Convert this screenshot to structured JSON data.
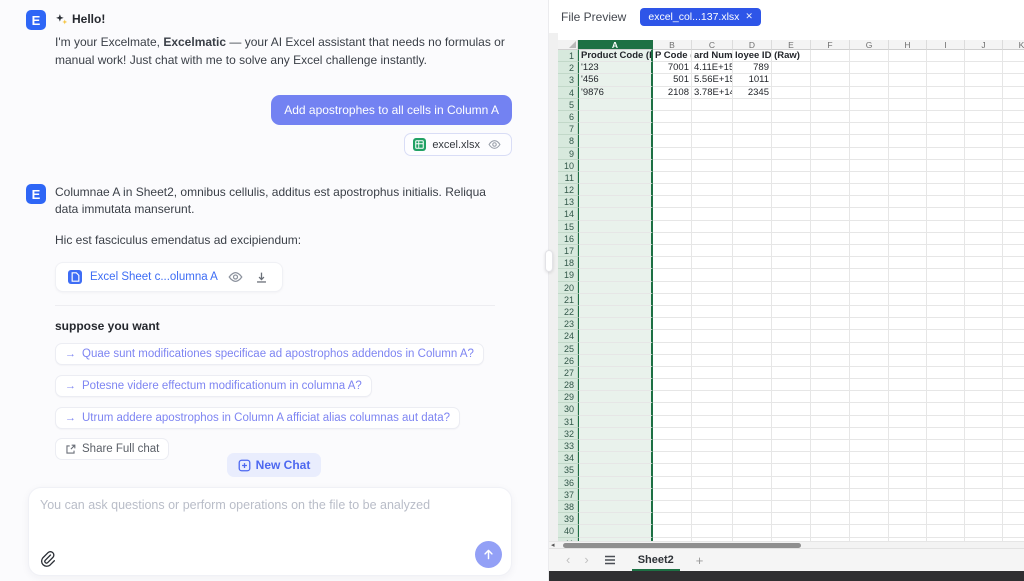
{
  "chat": {
    "logo_letter": "E",
    "greeting": {
      "title": "Hello!",
      "body_prefix": "I'm your Excelmate, ",
      "body_bold": "Excelmatic",
      "body_suffix": " — your AI Excel assistant that needs no formulas or manual work! Just chat with me to solve any Excel challenge instantly."
    },
    "user_message": "Add apostrophes to all cells in Column A",
    "user_file_chip": "excel.xlsx",
    "reply": {
      "line1": "Columnae A in Sheet2, omnibus cellulis, additus est apostrophus initialis. Reliqua data immutata manserunt.",
      "line2": "Hic est fasciculus emendatus ad excipiendum:",
      "file_link": "Excel Sheet c...olumna A"
    },
    "suggestions": {
      "title": "suppose you want",
      "arrow_glyph": "→",
      "items": [
        "Quae sunt modificationes specificae ad apostrophos addendos in Column A?",
        "Potesne videre effectum modificationum in columna A?",
        "Utrum addere apostrophos in Column A afficiat alias columnas aut data?"
      ],
      "share_label": "Share Full chat"
    },
    "new_chat_label": "New Chat",
    "input_placeholder": "You can ask questions or perform operations on the file to be analyzed"
  },
  "preview": {
    "header_label": "File Preview",
    "tab_label": "excel_col...137.xlsx",
    "tab_close_glyph": "✕",
    "columns": [
      "A",
      "B",
      "C",
      "D",
      "E",
      "F",
      "G",
      "H",
      "I",
      "J",
      "K"
    ],
    "row_count": 41,
    "selected_column": "A",
    "cells": {
      "1": {
        "A": "Product Code (Raw)",
        "B": "P Code (Ra",
        "C": "ard Numbe",
        "D": "loyee ID (Raw)"
      },
      "2": {
        "A": "'123",
        "B": "7001",
        "C": "4.11E+15",
        "D": "789"
      },
      "3": {
        "A": "'456",
        "B": "501",
        "C": "5.56E+15",
        "D": "1011"
      },
      "4": {
        "A": "'9876",
        "B": "2108",
        "C": "3.78E+14",
        "D": "2345"
      }
    },
    "scroll": {
      "left_arrow_glyph": "◂"
    },
    "sheet_bar": {
      "prev_glyph": "‹",
      "next_glyph": "›",
      "active_sheet": "Sheet2",
      "add_glyph": "+"
    },
    "colors": {
      "excel_green": "#1d7044",
      "selected_col_fill": "#e9f2ec",
      "row_header_fill": "#d7e9dd",
      "tab_blue": "#2e55e8",
      "user_bubble": "#7382f2",
      "accent_indigo": "#4d68f0",
      "link_blue": "#3e6df5",
      "file_icon_green": "#21a164"
    }
  }
}
